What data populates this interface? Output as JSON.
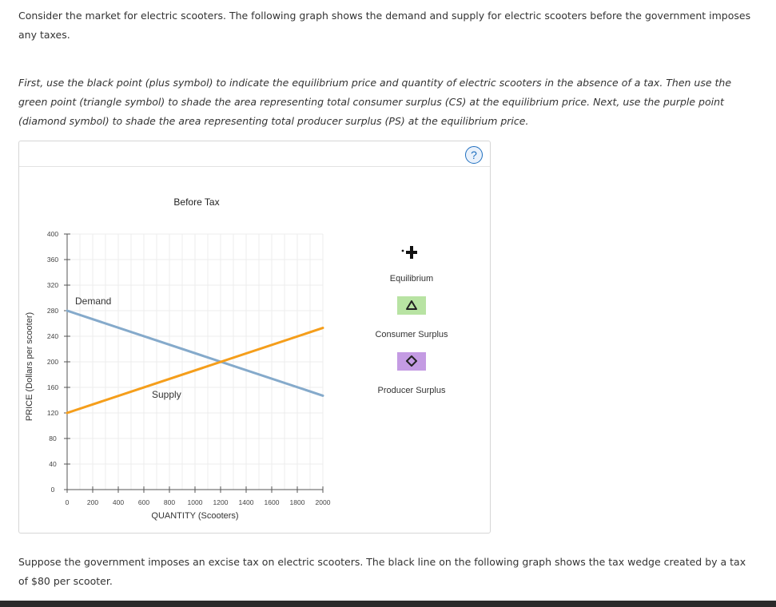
{
  "intro": "Consider the market for electric scooters. The following graph shows the demand and supply for electric scooters before the government imposes any taxes.",
  "instructions": "First, use the black point (plus symbol) to indicate the equilibrium price and quantity of electric scooters in the absence of a tax. Then use the green point (triangle symbol) to shade the area representing total consumer surplus (CS) at the equilibrium price. Next, use the purple point (diamond symbol) to shade the area representing total producer surplus (PS) at the equilibrium price.",
  "help_label": "?",
  "tools": {
    "equilibrium": "Equilibrium",
    "consumer_surplus": "Consumer Surplus",
    "producer_surplus": "Producer Surplus"
  },
  "followup": "Suppose the government imposes an excise tax on electric scooters. The black line on the following graph shows the tax wedge created by a tax of $80 per scooter.",
  "colors": {
    "demand": "#85aacb",
    "supply": "#f59e1b",
    "cs": "#b8e3a3",
    "ps": "#c49be3",
    "help": "#1f6fbf"
  },
  "chart_data": {
    "type": "line",
    "title": "Before Tax",
    "xlabel": "QUANTITY (Scooters)",
    "ylabel": "PRICE (Dollars per scooter)",
    "xlim": [
      0,
      2000
    ],
    "ylim": [
      0,
      400
    ],
    "xticks": [
      0,
      200,
      400,
      600,
      800,
      1000,
      1200,
      1400,
      1600,
      1800,
      2000
    ],
    "yticks": [
      0,
      40,
      80,
      120,
      160,
      200,
      240,
      280,
      320,
      360,
      400
    ],
    "grid": true,
    "series": [
      {
        "name": "Demand",
        "x": [
          0,
          2000
        ],
        "y": [
          280,
          147
        ]
      },
      {
        "name": "Supply",
        "x": [
          0,
          2000
        ],
        "y": [
          120,
          253
        ]
      }
    ]
  }
}
